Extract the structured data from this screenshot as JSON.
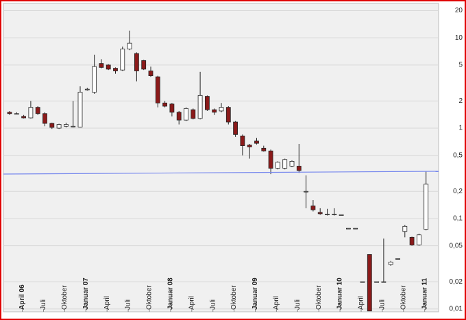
{
  "chart_data": {
    "type": "candlestick",
    "log_scale": true,
    "grid": true,
    "up_color": "#ffffff",
    "down_color": "#8b1a1a",
    "ylim": [
      0.0093,
      24
    ],
    "yticks": [
      20,
      10,
      5,
      2,
      1,
      {
        "value": 0.5,
        "label": "0,5"
      },
      {
        "value": 0.2,
        "label": "0,2"
      },
      {
        "value": 0.1,
        "label": "0,1"
      },
      {
        "value": 0.05,
        "label": "0,05"
      },
      {
        "value": 0.02,
        "label": "0,02"
      },
      {
        "value": 0.01,
        "label": "0,01"
      }
    ],
    "categories": [
      null,
      null,
      "April 06",
      null,
      null,
      "Juli",
      null,
      null,
      "Oktober",
      null,
      null,
      "Januar 07",
      null,
      null,
      "April",
      null,
      null,
      "Juli",
      null,
      null,
      "Oktober",
      null,
      null,
      "Januar 08",
      null,
      null,
      "April",
      null,
      null,
      "Juli",
      null,
      null,
      "Oktober",
      null,
      null,
      "Januar 09",
      null,
      null,
      "April",
      null,
      null,
      "Juli",
      null,
      null,
      "Oktober",
      null,
      null,
      "Januar 10",
      null,
      null,
      "April",
      null,
      null,
      "Juli",
      null,
      null,
      "Oktober",
      null,
      null,
      "Januar 11"
    ],
    "open": [
      1.5,
      1.45,
      1.35,
      1.3,
      1.7,
      1.45,
      1.13,
      1.0,
      1.05,
      1.05,
      1.03,
      2.7,
      2.5,
      5.2,
      5.0,
      4.6,
      4.4,
      7.5,
      6.7,
      5.6,
      4.3,
      3.7,
      1.9,
      1.85,
      1.5,
      1.23,
      1.6,
      1.28,
      2.25,
      1.6,
      1.55,
      1.7,
      1.17,
      0.82,
      0.65,
      0.72,
      0.6,
      0.56,
      0.36,
      0.36,
      0.38,
      0.38,
      0.2,
      0.138,
      0.117,
      0.112,
      0.112,
      0.11,
      0.078,
      0.078,
      0.02,
      0.04,
      0.02,
      0.02,
      0.031,
      0.036,
      0.072,
      0.062,
      0.051,
      0.076
    ],
    "high": [
      1.55,
      1.5,
      1.4,
      2.0,
      1.75,
      1.5,
      1.15,
      1.12,
      1.15,
      2.0,
      2.9,
      2.8,
      6.5,
      5.8,
      5.1,
      4.7,
      8.0,
      12,
      6.9,
      5.7,
      4.8,
      3.8,
      2.0,
      1.9,
      1.55,
      1.7,
      1.65,
      4.2,
      2.3,
      1.65,
      1.9,
      1.75,
      1.2,
      0.85,
      0.67,
      0.78,
      0.64,
      0.58,
      0.43,
      0.46,
      0.44,
      0.67,
      0.3,
      0.16,
      0.13,
      0.128,
      0.13,
      0.11,
      0.078,
      0.078,
      0.02,
      0.04,
      0.02,
      0.06,
      0.034,
      0.036,
      0.085,
      0.063,
      0.068,
      0.33
    ],
    "low": [
      1.4,
      1.42,
      1.28,
      1.28,
      1.4,
      1.05,
      0.98,
      0.98,
      1.02,
      1.02,
      1.02,
      2.6,
      2.4,
      4.6,
      4.4,
      4.0,
      4.3,
      7.3,
      3.3,
      4.4,
      3.7,
      1.7,
      1.7,
      1.35,
      1.1,
      1.2,
      1.25,
      1.25,
      1.55,
      1.4,
      1.5,
      1.1,
      0.8,
      0.5,
      0.46,
      0.66,
      0.55,
      0.31,
      0.35,
      0.35,
      0.37,
      0.32,
      0.13,
      0.12,
      0.11,
      0.108,
      0.108,
      0.11,
      0.078,
      0.078,
      0.02,
      0.0095,
      0.02,
      0.02,
      0.03,
      0.036,
      0.062,
      0.05,
      0.05,
      0.074
    ],
    "close": [
      1.45,
      1.45,
      1.3,
      1.7,
      1.45,
      1.13,
      1.02,
      1.1,
      1.1,
      1.05,
      2.5,
      2.7,
      4.8,
      4.7,
      4.5,
      4.3,
      7.5,
      8.7,
      4.3,
      4.5,
      3.8,
      1.9,
      1.75,
      1.5,
      1.23,
      1.65,
      1.28,
      2.3,
      1.6,
      1.5,
      1.7,
      1.17,
      0.85,
      0.64,
      0.62,
      0.68,
      0.56,
      0.36,
      0.42,
      0.45,
      0.43,
      0.34,
      0.2,
      0.125,
      0.113,
      0.112,
      0.112,
      0.11,
      0.078,
      0.078,
      0.02,
      0.0095,
      0.02,
      0.02,
      0.033,
      0.036,
      0.082,
      0.051,
      0.066,
      0.24
    ]
  }
}
